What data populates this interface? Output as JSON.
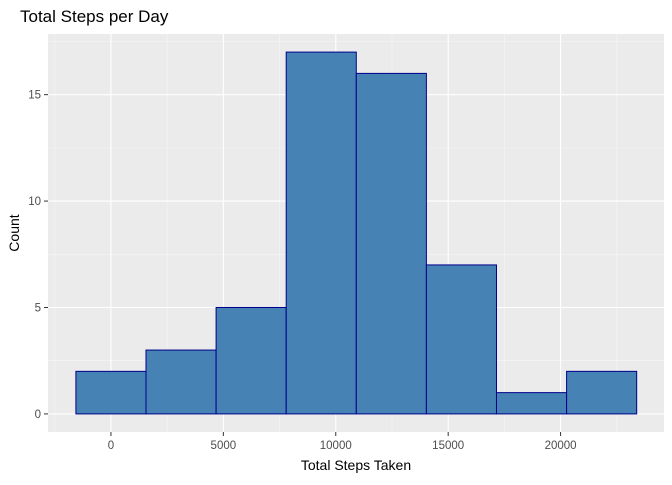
{
  "chart_data": {
    "type": "bar",
    "title": "Total Steps per Day",
    "xlabel": "Total Steps Taken",
    "ylabel": "Count",
    "bins": [
      {
        "x0": -1559,
        "x1": 1559,
        "count": 2
      },
      {
        "x0": 1559,
        "x1": 4677,
        "count": 3
      },
      {
        "x0": 4677,
        "x1": 7795,
        "count": 5
      },
      {
        "x0": 7795,
        "x1": 10913,
        "count": 17
      },
      {
        "x0": 10913,
        "x1": 14031,
        "count": 16
      },
      {
        "x0": 14031,
        "x1": 17149,
        "count": 7
      },
      {
        "x0": 17149,
        "x1": 20267,
        "count": 1
      },
      {
        "x0": 20267,
        "x1": 23385,
        "count": 2
      }
    ],
    "x_ticks": [
      0,
      5000,
      10000,
      15000,
      20000
    ],
    "x_tick_labels": [
      "0",
      "5000",
      "10000",
      "15000",
      "20000"
    ],
    "y_ticks": [
      0,
      5,
      10,
      15
    ],
    "y_tick_labels": [
      "0",
      "5",
      "10",
      "15"
    ],
    "xlim": [
      -2800,
      24600
    ],
    "ylim": [
      -0.85,
      17.85
    ],
    "grid": true,
    "colors": {
      "panel_background": "#ebebeb",
      "grid_major": "#ffffff",
      "grid_minor": "#f5f5f5",
      "bar_fill": "#4682b4",
      "bar_outline": "#00008b",
      "tick_mark": "#333333"
    }
  }
}
